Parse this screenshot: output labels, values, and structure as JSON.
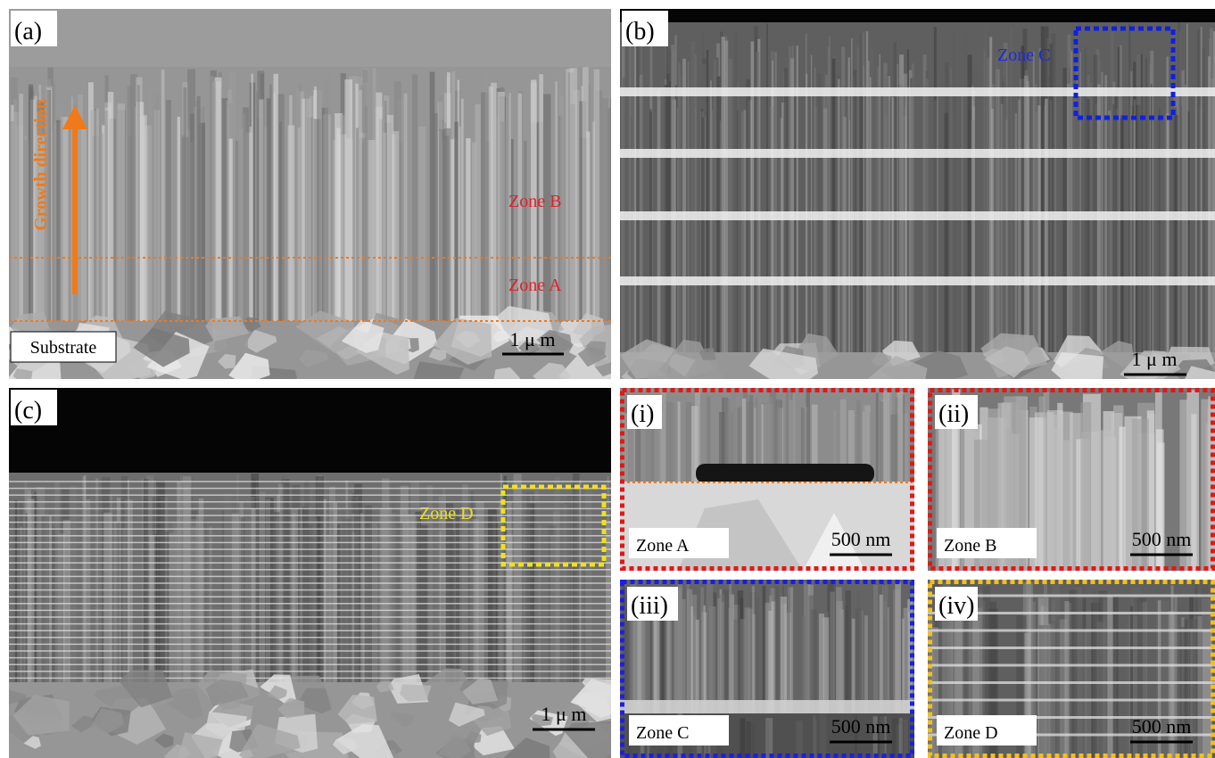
{
  "panels": {
    "a": {
      "label": "(a)",
      "arrow": "Growth direction",
      "zone_b": "Zone B",
      "zone_a": "Zone A",
      "substrate": "Substrate",
      "scale": "1 μ m"
    },
    "b": {
      "label": "(b)",
      "zone": "Zone C",
      "scale": "1 μ m"
    },
    "c": {
      "label": "(c)",
      "zone": "Zone D",
      "scale": "1 μ m"
    },
    "i": {
      "label": "(i)",
      "zone": "Zone A",
      "scale": "500 nm"
    },
    "ii": {
      "label": "(ii)",
      "zone": "Zone B",
      "scale": "500 nm"
    },
    "iii": {
      "label": "(iii)",
      "zone": "Zone C",
      "scale": "500 nm"
    },
    "iv": {
      "label": "(iv)",
      "zone": "Zone D",
      "scale": "500 nm"
    }
  }
}
